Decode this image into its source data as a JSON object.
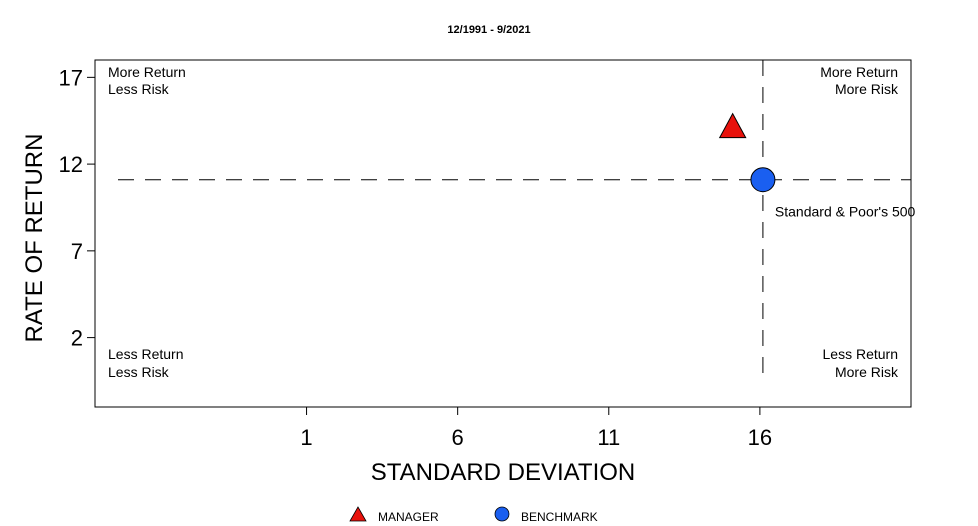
{
  "chart_data": {
    "type": "scatter",
    "subtitle": "12/1991 - 9/2021",
    "xlabel": "STANDARD DEVIATION",
    "ylabel": "RATE OF RETURN",
    "xlim": [
      -6,
      21
    ],
    "ylim": [
      -2,
      18
    ],
    "xticks": [
      1,
      6,
      11,
      16
    ],
    "yticks": [
      2,
      7,
      12,
      17
    ],
    "grid": false,
    "series": [
      {
        "name": "MANAGER",
        "marker": "triangle",
        "color": "#e8120c",
        "x": 15.1,
        "y": 14.1
      },
      {
        "name": "BENCHMARK",
        "marker": "circle",
        "color": "#1a5ff0",
        "x": 16.1,
        "y": 11.1,
        "label": "Standard & Poor's 500"
      }
    ],
    "reference_lines": {
      "x": 16.1,
      "y": 11.1
    },
    "quadrants": {
      "top_left": [
        "More Return",
        "Less Risk"
      ],
      "top_right": [
        "More Return",
        "More Risk"
      ],
      "bottom_left": [
        "Less Return",
        "Less Risk"
      ],
      "bottom_right": [
        "Less Return",
        "More Risk"
      ]
    },
    "legend": {
      "position": "bottom",
      "entries": [
        "MANAGER",
        "BENCHMARK"
      ]
    }
  }
}
